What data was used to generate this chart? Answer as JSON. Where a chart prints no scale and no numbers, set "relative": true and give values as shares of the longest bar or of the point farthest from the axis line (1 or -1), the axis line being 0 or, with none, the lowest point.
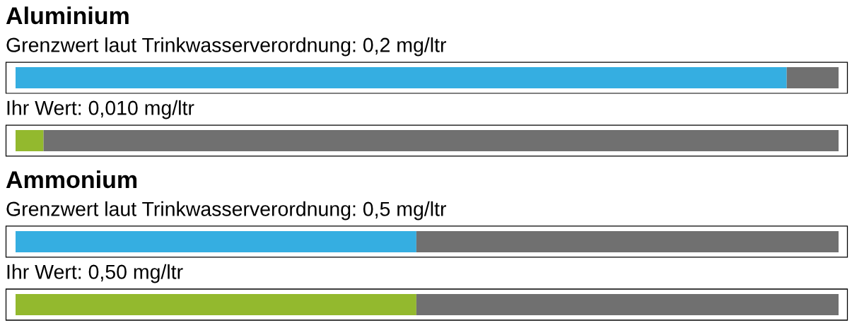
{
  "chart_data": [
    {
      "type": "bar",
      "orientation": "horizontal",
      "stacked": true,
      "relative": true,
      "title": "Aluminium",
      "categories": [
        "Grenzwert laut Trinkwasserverordnung: 0,2 mg/ltr",
        "Ihr Wert: 0,010 mg/ltr"
      ],
      "series": [
        {
          "colors": [
            "#35aee1",
            "#93b92e"
          ],
          "values": [
            0.937,
            0.034
          ]
        },
        {
          "color": "#707070",
          "values": [
            0.063,
            0.966
          ]
        }
      ]
    },
    {
      "type": "bar",
      "orientation": "horizontal",
      "stacked": true,
      "relative": true,
      "title": "Ammonium",
      "categories": [
        "Grenzwert laut Trinkwasserverordnung: 0,5 mg/ltr",
        "Ihr Wert: 0,50 mg/ltr"
      ],
      "series": [
        {
          "colors": [
            "#35aee1",
            "#93b92e"
          ],
          "values": [
            0.487,
            0.487
          ]
        },
        {
          "color": "#707070",
          "values": [
            0.513,
            0.513
          ]
        }
      ]
    }
  ]
}
